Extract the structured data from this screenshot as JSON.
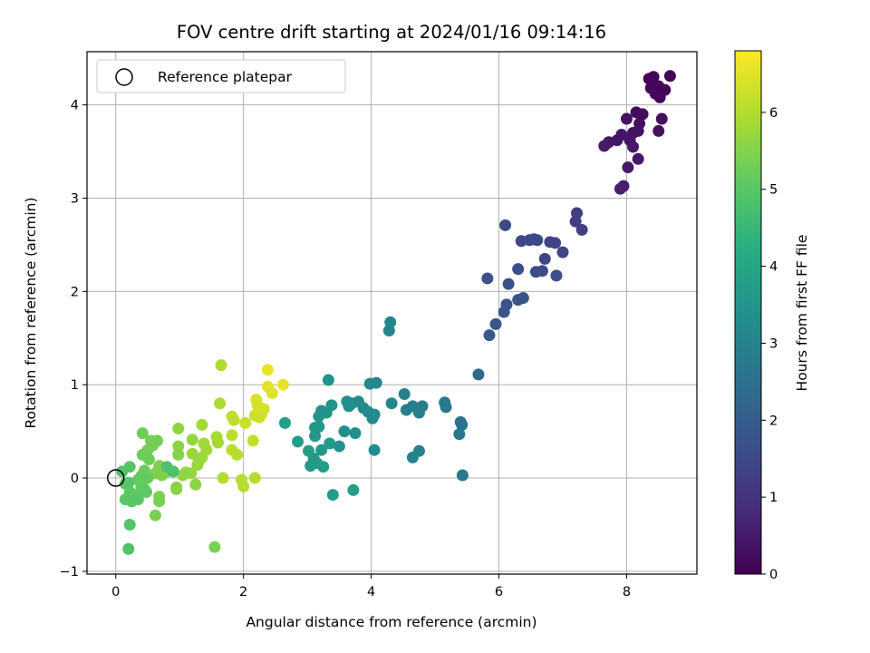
{
  "chart_data": {
    "type": "scatter",
    "title": "FOV centre drift starting at 2024/01/16 09:14:16",
    "xlabel": "Angular distance from reference (arcmin)",
    "ylabel": "Rotation from reference (arcmin)",
    "xlim": [
      -0.45,
      9.1
    ],
    "ylim": [
      -1.03,
      4.57
    ],
    "xticks": [
      0,
      2,
      4,
      6,
      8
    ],
    "yticks": [
      -1,
      0,
      1,
      2,
      3,
      4
    ],
    "grid": true,
    "legend": {
      "placement": "top-left",
      "entries": [
        "Reference platepar"
      ]
    },
    "reference_point": {
      "x": 0,
      "y": 0,
      "label": "Reference platepar"
    },
    "colorbar": {
      "label": "Hours from first FF file",
      "colormap": "viridis",
      "range": [
        0,
        6.8
      ],
      "ticks": [
        0,
        1,
        2,
        3,
        4,
        5,
        6
      ]
    },
    "points": [
      [
        8.35,
        4.28,
        0.05
      ],
      [
        8.42,
        4.3,
        0.06
      ],
      [
        8.5,
        4.2,
        0.08
      ],
      [
        8.38,
        4.18,
        0.1
      ],
      [
        8.45,
        4.12,
        0.12
      ],
      [
        8.6,
        4.16,
        0.1
      ],
      [
        8.68,
        4.31,
        0.04
      ],
      [
        8.52,
        4.08,
        0.14
      ],
      [
        8.4,
        4.24,
        0.09
      ],
      [
        8.25,
        3.9,
        0.2
      ],
      [
        8.15,
        3.92,
        0.22
      ],
      [
        8.2,
        3.8,
        0.25
      ],
      [
        8.55,
        3.85,
        0.24
      ],
      [
        8.5,
        3.72,
        0.28
      ],
      [
        8.0,
        3.85,
        0.3
      ],
      [
        8.1,
        3.7,
        0.32
      ],
      [
        8.18,
        3.72,
        0.34
      ],
      [
        8.05,
        3.62,
        0.4
      ],
      [
        7.85,
        3.62,
        0.42
      ],
      [
        7.92,
        3.68,
        0.38
      ],
      [
        7.72,
        3.6,
        0.44
      ],
      [
        7.65,
        3.56,
        0.46
      ],
      [
        8.1,
        3.55,
        0.45
      ],
      [
        8.18,
        3.42,
        0.48
      ],
      [
        8.02,
        3.33,
        0.5
      ],
      [
        7.95,
        3.13,
        0.55
      ],
      [
        7.9,
        3.1,
        0.57
      ],
      [
        7.22,
        2.84,
        1.2
      ],
      [
        7.2,
        2.75,
        1.25
      ],
      [
        7.3,
        2.66,
        1.28
      ],
      [
        7.0,
        2.42,
        1.35
      ],
      [
        6.8,
        2.53,
        1.4
      ],
      [
        6.88,
        2.52,
        1.38
      ],
      [
        6.72,
        2.35,
        1.42
      ],
      [
        6.55,
        2.56,
        1.45
      ],
      [
        6.48,
        2.55,
        1.44
      ],
      [
        6.6,
        2.55,
        1.46
      ],
      [
        6.35,
        2.54,
        1.5
      ],
      [
        6.1,
        2.71,
        1.52
      ],
      [
        6.58,
        2.21,
        1.55
      ],
      [
        6.68,
        2.22,
        1.56
      ],
      [
        6.9,
        2.17,
        1.58
      ],
      [
        6.3,
        2.24,
        1.6
      ],
      [
        5.82,
        2.14,
        1.65
      ],
      [
        6.15,
        2.08,
        1.68
      ],
      [
        6.3,
        1.91,
        1.7
      ],
      [
        6.38,
        1.93,
        1.72
      ],
      [
        6.12,
        1.86,
        1.75
      ],
      [
        6.08,
        1.78,
        1.78
      ],
      [
        5.95,
        1.65,
        1.8
      ],
      [
        5.85,
        1.53,
        1.82
      ],
      [
        5.68,
        1.11,
        2.3
      ],
      [
        5.42,
        0.57,
        2.6
      ],
      [
        5.4,
        0.6,
        2.55
      ],
      [
        5.38,
        0.47,
        2.65
      ],
      [
        5.15,
        0.81,
        2.7
      ],
      [
        5.17,
        0.76,
        2.72
      ],
      [
        5.43,
        0.03,
        2.75
      ],
      [
        4.8,
        0.77,
        2.85
      ],
      [
        4.75,
        0.7,
        2.88
      ],
      [
        4.65,
        0.77,
        2.9
      ],
      [
        4.55,
        0.73,
        2.92
      ],
      [
        4.52,
        0.9,
        2.95
      ],
      [
        4.75,
        0.29,
        3.0
      ],
      [
        4.65,
        0.22,
        3.02
      ],
      [
        4.3,
        1.67,
        3.05
      ],
      [
        4.28,
        1.58,
        3.07
      ],
      [
        4.32,
        0.8,
        3.1
      ],
      [
        4.08,
        1.02,
        3.12
      ],
      [
        3.98,
        1.01,
        3.15
      ],
      [
        4.05,
        0.68,
        3.18
      ],
      [
        4.02,
        0.64,
        3.2
      ],
      [
        3.95,
        0.71,
        3.22
      ],
      [
        4.05,
        0.3,
        3.25
      ],
      [
        3.88,
        0.75,
        3.28
      ],
      [
        3.8,
        0.82,
        3.3
      ],
      [
        3.7,
        0.8,
        3.32
      ],
      [
        3.62,
        0.82,
        3.34
      ],
      [
        3.65,
        0.77,
        3.36
      ],
      [
        3.75,
        0.48,
        3.38
      ],
      [
        3.58,
        0.5,
        3.4
      ],
      [
        3.5,
        0.34,
        3.42
      ],
      [
        3.33,
        1.05,
        3.45
      ],
      [
        3.38,
        0.78,
        3.48
      ],
      [
        3.3,
        0.7,
        3.5
      ],
      [
        3.22,
        0.72,
        3.52
      ],
      [
        3.18,
        0.66,
        3.54
      ],
      [
        3.18,
        0.55,
        3.56
      ],
      [
        3.12,
        0.54,
        3.58
      ],
      [
        3.12,
        0.45,
        3.6
      ],
      [
        3.35,
        0.37,
        3.62
      ],
      [
        3.22,
        0.3,
        3.64
      ],
      [
        3.1,
        0.21,
        3.66
      ],
      [
        3.05,
        0.13,
        3.68
      ],
      [
        3.15,
        0.16,
        3.7
      ],
      [
        3.25,
        0.12,
        3.72
      ],
      [
        3.02,
        0.29,
        3.74
      ],
      [
        3.4,
        -0.18,
        3.76
      ],
      [
        3.72,
        -0.13,
        3.78
      ],
      [
        2.85,
        0.39,
        3.8
      ],
      [
        2.65,
        0.59,
        3.85
      ],
      [
        2.62,
        1.0,
        6.6
      ],
      [
        2.38,
        1.16,
        6.55
      ],
      [
        2.38,
        0.98,
        6.5
      ],
      [
        2.45,
        0.91,
        6.45
      ],
      [
        2.2,
        0.84,
        6.4
      ],
      [
        2.22,
        0.78,
        6.38
      ],
      [
        2.32,
        0.74,
        6.35
      ],
      [
        2.28,
        0.68,
        6.32
      ],
      [
        2.25,
        0.65,
        6.3
      ],
      [
        2.18,
        0.67,
        6.28
      ],
      [
        2.03,
        0.59,
        6.25
      ],
      [
        2.15,
        0.4,
        6.2
      ],
      [
        1.82,
        0.66,
        6.15
      ],
      [
        1.85,
        0.62,
        6.12
      ],
      [
        1.82,
        0.46,
        6.1
      ],
      [
        1.82,
        0.3,
        6.08
      ],
      [
        1.9,
        0.25,
        6.06
      ],
      [
        1.97,
        -0.02,
        6.05
      ],
      [
        2.0,
        -0.09,
        6.04
      ],
      [
        2.18,
        0.0,
        6.03
      ],
      [
        1.68,
        0.0,
        6.0
      ],
      [
        1.65,
        1.21,
        5.95
      ],
      [
        1.63,
        0.8,
        5.9
      ],
      [
        1.58,
        0.44,
        5.88
      ],
      [
        1.6,
        0.38,
        5.86
      ],
      [
        1.55,
        -0.74,
        5.4
      ],
      [
        1.35,
        0.57,
        5.85
      ],
      [
        1.38,
        0.37,
        5.82
      ],
      [
        1.42,
        0.3,
        5.8
      ],
      [
        1.35,
        0.22,
        5.78
      ],
      [
        1.3,
        0.18,
        5.76
      ],
      [
        1.2,
        0.26,
        5.74
      ],
      [
        1.28,
        0.14,
        5.72
      ],
      [
        1.18,
        0.05,
        5.7
      ],
      [
        1.1,
        0.06,
        5.68
      ],
      [
        1.2,
        0.41,
        5.66
      ],
      [
        1.05,
        0.03,
        5.64
      ],
      [
        0.98,
        0.53,
        5.62
      ],
      [
        0.98,
        0.34,
        5.6
      ],
      [
        1.25,
        -0.07,
        5.58
      ],
      [
        0.95,
        -0.1,
        5.56
      ],
      [
        0.95,
        -0.12,
        5.54
      ],
      [
        0.98,
        0.25,
        5.52
      ],
      [
        0.8,
        0.07,
        5.5
      ],
      [
        0.72,
        0.03,
        5.48
      ],
      [
        0.68,
        0.13,
        5.46
      ],
      [
        0.62,
        0.05,
        5.44
      ],
      [
        0.68,
        -0.2,
        5.42
      ],
      [
        0.62,
        -0.4,
        5.4
      ],
      [
        0.68,
        -0.25,
        5.38
      ],
      [
        0.55,
        0.4,
        5.36
      ],
      [
        0.65,
        0.4,
        5.34
      ],
      [
        0.58,
        0.35,
        5.32
      ],
      [
        0.5,
        0.3,
        5.3
      ],
      [
        0.42,
        0.48,
        5.28
      ],
      [
        0.42,
        0.25,
        5.26
      ],
      [
        0.52,
        0.2,
        5.24
      ],
      [
        0.45,
        0.08,
        5.22
      ],
      [
        0.4,
        0.02,
        5.2
      ],
      [
        0.5,
        0.0,
        5.18
      ],
      [
        0.35,
        -0.02,
        5.16
      ],
      [
        0.4,
        -0.1,
        5.14
      ],
      [
        0.45,
        -0.12,
        5.12
      ],
      [
        0.48,
        -0.15,
        5.1
      ],
      [
        0.3,
        -0.18,
        5.08
      ],
      [
        0.22,
        -0.15,
        5.06
      ],
      [
        0.25,
        -0.25,
        5.04
      ],
      [
        0.35,
        -0.23,
        5.02
      ],
      [
        0.15,
        -0.23,
        5.0
      ],
      [
        0.15,
        -0.06,
        4.98
      ],
      [
        0.2,
        -0.05,
        4.96
      ],
      [
        0.22,
        0.12,
        4.94
      ],
      [
        0.1,
        0.07,
        4.92
      ],
      [
        0.22,
        -0.5,
        4.9
      ],
      [
        0.2,
        -0.76,
        4.88
      ],
      [
        0.8,
        0.12,
        4.86
      ],
      [
        0.9,
        0.07,
        4.84
      ]
    ]
  }
}
